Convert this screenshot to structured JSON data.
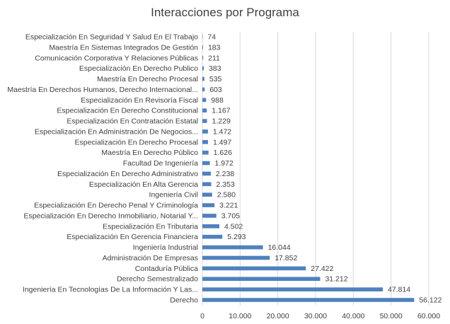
{
  "chart_data": {
    "type": "bar",
    "orientation": "horizontal",
    "title": "Interacciones por Programa",
    "xlabel": "",
    "ylabel": "",
    "xlim": [
      0,
      60000
    ],
    "grid": true,
    "color": "#4F81BD",
    "x_ticks": [
      "0",
      "10.000",
      "20.000",
      "30.000",
      "40.000",
      "50.000",
      "60.000"
    ],
    "x_tick_values": [
      0,
      10000,
      20000,
      30000,
      40000,
      50000,
      60000
    ],
    "categories": [
      "Especialización En Seguridad Y Salud En El Trabajo",
      "Maestría En Sistemas Integrados De Gestión",
      "Comunicación Corporativa Y Relaciones Públicas",
      "Especialización En Derecho Publico",
      "Maestría En Derecho Procesal",
      "Maestría En Derechos Humanos, Derecho Internacional...",
      "Especialización En Revisoría Fiscal",
      "Especialización En Derecho Constitucional",
      "Especialización En Contratación Estatal",
      "Especialización En Administración De Negocios...",
      "Especialización En Derecho Procesal",
      "Maestría En Derecho Público",
      "Facultad De Ingeniería",
      "Especialización En Derecho Administrativo",
      "Especialización En Alta Gerencia",
      "Ingeniería Civil",
      "Especialización En Derecho Penal Y Criminología",
      "Especialización En Derecho Inmobiliario, Notarial Y...",
      "Especialización En Tributaria",
      "Especialización En Gerencia Financiera",
      "Ingeniería Industrial",
      "Administración De Empresas",
      "Contaduría Pública",
      "Derecho Semestralizado",
      "Ingeniería En Tecnologías De La Información Y Las...",
      "Derecho"
    ],
    "values": [
      74,
      183,
      211,
      383,
      535,
      603,
      988,
      1167,
      1229,
      1472,
      1497,
      1626,
      1972,
      2238,
      2353,
      2580,
      3221,
      3705,
      4502,
      5293,
      16044,
      17852,
      27422,
      31212,
      47814,
      56122
    ],
    "data_labels": [
      "74",
      "183",
      "211",
      "383",
      "535",
      "603",
      "988",
      "1.167",
      "1.229",
      "1.472",
      "1.497",
      "1.626",
      "1.972",
      "2.238",
      "2.353",
      "2.580",
      "3.221",
      "3.705",
      "4.502",
      "5.293",
      "16.044",
      "17.852",
      "27.422",
      "31.212",
      "47.814",
      "56.122"
    ]
  }
}
